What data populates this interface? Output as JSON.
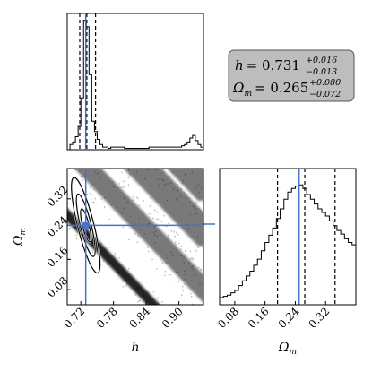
{
  "annotation": {
    "h_label": "h",
    "h_value": "0.731",
    "h_plus": "+0.016",
    "h_minus": "−0.013",
    "om_label": "Ω",
    "om_sub": "m",
    "om_value": "0.265",
    "om_plus": "+0.080",
    "om_minus": "−0.072"
  },
  "colors": {
    "truth": "#4a72c9",
    "box_fill": "#bdbdbd",
    "box_stroke": "#555555"
  },
  "chart_data": [
    {
      "type": "histogram",
      "panel": "h-marginal",
      "xlim": [
        0.695,
        0.945
      ],
      "bins": [
        0.7,
        0.705,
        0.71,
        0.715,
        0.72,
        0.725,
        0.73,
        0.735,
        0.74,
        0.745,
        0.75,
        0.755,
        0.76,
        0.765,
        0.77,
        0.775,
        0.78,
        0.785,
        0.79,
        0.795,
        0.8,
        0.805,
        0.81,
        0.815,
        0.82,
        0.825,
        0.83,
        0.835,
        0.84,
        0.845,
        0.85,
        0.855,
        0.86,
        0.865,
        0.87,
        0.875,
        0.88,
        0.885,
        0.89,
        0.895,
        0.9,
        0.905,
        0.91,
        0.915,
        0.92,
        0.925,
        0.93,
        0.935,
        0.94,
        0.945
      ],
      "counts": [
        0.04,
        0.06,
        0.1,
        0.18,
        0.4,
        1.0,
        0.95,
        0.58,
        0.22,
        0.14,
        0.08,
        0.04,
        0.02,
        0.02,
        0.01,
        0.02,
        0.02,
        0.02,
        0.02,
        0.02,
        0.01,
        0.01,
        0.01,
        0.01,
        0.01,
        0.01,
        0.01,
        0.01,
        0.01,
        0.02,
        0.02,
        0.02,
        0.02,
        0.02,
        0.02,
        0.02,
        0.02,
        0.02,
        0.02,
        0.02,
        0.02,
        0.03,
        0.04,
        0.06,
        0.09,
        0.11,
        0.07,
        0.04,
        0.02
      ],
      "quantiles": [
        0.718,
        0.731,
        0.747
      ],
      "truth": 0.729
    },
    {
      "type": "scatter",
      "panel": "joint h-Omega_m",
      "xlabel": "h",
      "ylabel": "Ω_m",
      "xlim": [
        0.695,
        0.945
      ],
      "ylim": [
        0.04,
        0.4
      ],
      "xticks": [
        0.72,
        0.78,
        0.84,
        0.9
      ],
      "yticks": [
        0.08,
        0.16,
        0.24,
        0.32
      ],
      "stripes": [
        {
          "intercept": 1.32,
          "slope": -1.5,
          "width": 0.012
        },
        {
          "intercept": 1.5,
          "slope": -1.5,
          "width": 0.025
        },
        {
          "intercept": 1.65,
          "slope": -1.5,
          "width": 0.035
        },
        {
          "intercept": 1.77,
          "slope": -1.5,
          "width": 0.035
        },
        {
          "intercept": 1.93,
          "slope": -1.5,
          "width": 0.04
        }
      ],
      "contours": [
        {
          "cx": 0.729,
          "cy": 0.25,
          "rx": 0.006,
          "ry": 0.045
        },
        {
          "cx": 0.729,
          "cy": 0.25,
          "rx": 0.01,
          "ry": 0.085
        },
        {
          "cx": 0.729,
          "cy": 0.25,
          "rx": 0.015,
          "ry": 0.13
        }
      ],
      "truth": [
        0.729,
        0.25
      ]
    },
    {
      "type": "histogram",
      "panel": "Omega_m-marginal",
      "xlabel": "Ω_m",
      "xlim": [
        0.04,
        0.4
      ],
      "xticks": [
        0.08,
        0.16,
        0.24,
        0.32
      ],
      "bins": [
        0.04,
        0.05,
        0.06,
        0.07,
        0.08,
        0.09,
        0.1,
        0.11,
        0.12,
        0.13,
        0.14,
        0.15,
        0.16,
        0.17,
        0.18,
        0.19,
        0.2,
        0.21,
        0.22,
        0.23,
        0.24,
        0.25,
        0.26,
        0.27,
        0.28,
        0.29,
        0.3,
        0.31,
        0.32,
        0.33,
        0.34,
        0.35,
        0.36,
        0.37,
        0.38,
        0.39,
        0.4
      ],
      "counts": [
        0.06,
        0.07,
        0.08,
        0.1,
        0.12,
        0.16,
        0.2,
        0.24,
        0.28,
        0.33,
        0.38,
        0.45,
        0.52,
        0.58,
        0.64,
        0.72,
        0.8,
        0.88,
        0.94,
        0.97,
        0.99,
        1.0,
        0.97,
        0.92,
        0.88,
        0.84,
        0.8,
        0.77,
        0.74,
        0.7,
        0.66,
        0.62,
        0.59,
        0.55,
        0.52,
        0.5
      ],
      "quantiles": [
        0.193,
        0.265,
        0.345
      ],
      "truth": 0.25
    }
  ]
}
